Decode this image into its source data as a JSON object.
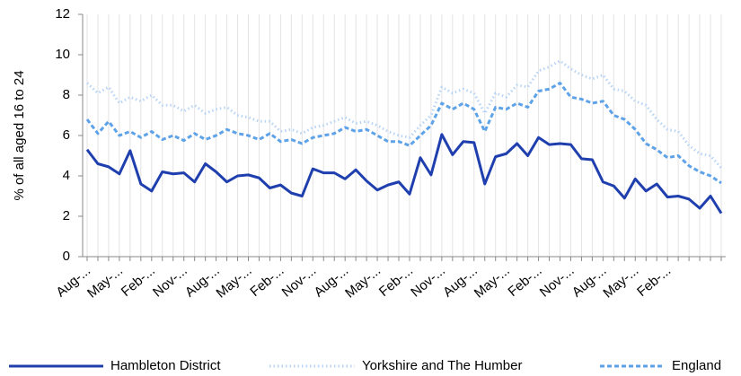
{
  "chart_data": {
    "type": "line",
    "y_label": "% of all aged 16 to 24",
    "categories": [
      "Aug-...",
      null,
      null,
      "May-...",
      null,
      null,
      "Feb-...",
      null,
      null,
      "Nov-...",
      null,
      null,
      "Aug-...",
      null,
      null,
      "May-...",
      null,
      null,
      "Feb-...",
      null,
      null,
      "Nov-...",
      null,
      null,
      "Aug-...",
      null,
      null,
      "May-...",
      null,
      null,
      "Feb-...",
      null,
      null,
      "Nov-...",
      null,
      null,
      "Aug-...",
      null,
      null,
      "May-...",
      null,
      null,
      "Feb-...",
      null,
      null,
      "Nov-...",
      null,
      null,
      "Aug-...",
      null,
      null,
      "May-...",
      null,
      null,
      "Feb-...",
      null,
      null,
      null,
      null,
      null
    ],
    "series": [
      {
        "name": "Hambleton District",
        "color": "#1f3fae",
        "dash": "solid",
        "values": [
          5.3,
          4.6,
          4.45,
          4.1,
          5.25,
          3.6,
          3.25,
          4.2,
          4.1,
          4.15,
          3.7,
          4.6,
          4.2,
          3.7,
          4.0,
          4.05,
          3.9,
          3.4,
          3.55,
          3.15,
          3.0,
          4.35,
          4.15,
          4.15,
          3.85,
          4.3,
          3.75,
          3.3,
          3.55,
          3.7,
          3.1,
          4.9,
          4.05,
          6.05,
          5.05,
          5.7,
          5.65,
          3.6,
          4.95,
          5.1,
          5.6,
          5.0,
          5.9,
          5.55,
          5.6,
          5.55,
          4.85,
          4.8,
          3.7,
          3.5,
          2.9,
          3.85,
          3.25,
          3.6,
          2.95,
          3.0,
          2.85,
          2.4,
          3.0,
          2.15
        ]
      },
      {
        "name": "Yorkshire and The Humber",
        "color": "#b9d5f5",
        "dash": "dotted",
        "values": [
          8.6,
          8.1,
          8.4,
          7.6,
          7.9,
          7.7,
          8.0,
          7.5,
          7.5,
          7.2,
          7.5,
          7.1,
          7.3,
          7.4,
          7.0,
          6.9,
          6.7,
          6.7,
          6.2,
          6.3,
          6.1,
          6.4,
          6.5,
          6.7,
          6.9,
          6.6,
          6.7,
          6.5,
          6.2,
          6.0,
          5.9,
          6.5,
          7.0,
          8.4,
          8.1,
          8.3,
          8.1,
          7.1,
          8.1,
          7.9,
          8.5,
          8.4,
          9.2,
          9.4,
          9.7,
          9.3,
          9.0,
          8.8,
          9.0,
          8.3,
          8.2,
          7.7,
          7.5,
          6.8,
          6.3,
          6.2,
          5.5,
          5.1,
          5.0,
          4.4
        ]
      },
      {
        "name": "England",
        "color": "#5ea2e8",
        "dash": "dashed",
        "values": [
          6.8,
          6.1,
          6.7,
          6.0,
          6.2,
          5.9,
          6.2,
          5.8,
          6.0,
          5.75,
          6.1,
          5.8,
          6.0,
          6.3,
          6.1,
          6.0,
          5.8,
          6.1,
          5.7,
          5.8,
          5.6,
          5.9,
          6.0,
          6.1,
          6.4,
          6.2,
          6.3,
          6.0,
          5.7,
          5.7,
          5.5,
          6.0,
          6.5,
          7.6,
          7.3,
          7.6,
          7.3,
          6.2,
          7.4,
          7.3,
          7.6,
          7.4,
          8.2,
          8.3,
          8.6,
          7.9,
          7.8,
          7.6,
          7.7,
          7.0,
          6.8,
          6.3,
          5.6,
          5.3,
          4.9,
          5.0,
          4.5,
          4.2,
          4.0,
          3.65
        ]
      }
    ],
    "ylim": [
      0,
      12
    ],
    "yticks": [
      0,
      2,
      4,
      6,
      8,
      10,
      12
    ],
    "grid": true,
    "legend": "bottom"
  }
}
